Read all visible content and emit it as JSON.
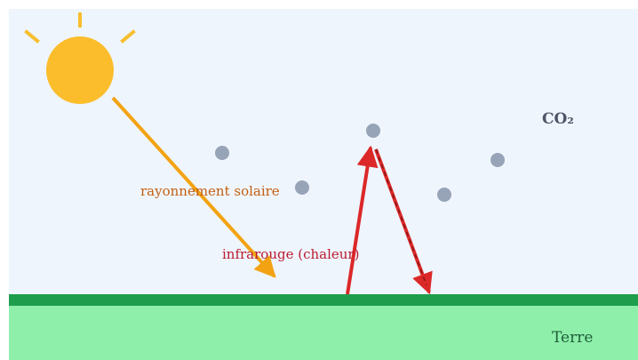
{
  "labels": {
    "co2": "CO₂",
    "solar": "rayonnement solaire",
    "infrared": "infrarouge (chaleur)",
    "earth": "Terre"
  },
  "colors": {
    "sky": "#eff5fd",
    "ground": "#8eefaa",
    "ground_edge": "#1e9e4c",
    "sun": "#fbbd2b",
    "sun_ray": "#f7be2e",
    "solar_arrow": "#f3a312",
    "solar_text": "#c35f10",
    "infrared": "#dc2828",
    "infrared_text": "#b91b30",
    "molecule": "#97a3b7",
    "co2_text": "#4d5566",
    "earth_text": "#1e5e3a"
  },
  "icons": {
    "sun": "sun-icon",
    "molecule": "co2-molecule-icon"
  }
}
